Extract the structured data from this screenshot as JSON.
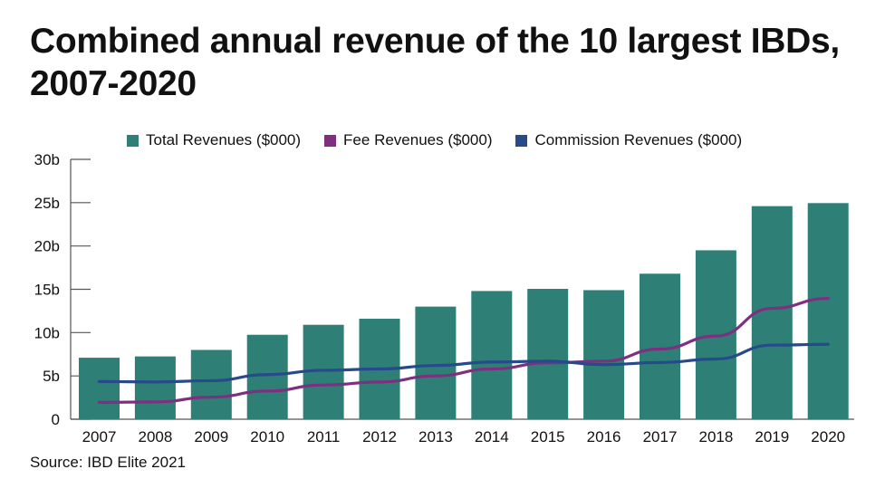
{
  "chart_data": {
    "type": "bar+line",
    "title": "Combined annual revenue of the 10 largest IBDs, 2007-2020",
    "source": "Source: IBD Elite 2021",
    "categories": [
      "2007",
      "2008",
      "2009",
      "2010",
      "2011",
      "2012",
      "2013",
      "2014",
      "2015",
      "2016",
      "2017",
      "2018",
      "2019",
      "2020"
    ],
    "yticks": [
      "0",
      "5b",
      "10b",
      "15b",
      "20b",
      "25b",
      "30b"
    ],
    "ylim": [
      0,
      30
    ],
    "yunit": "billions",
    "grid": false,
    "legend_position": "top",
    "series": [
      {
        "name": "Total Revenues ($000)",
        "kind": "bar",
        "color": "#2e7f76",
        "values": [
          7.1,
          7.25,
          8.0,
          9.75,
          10.9,
          11.6,
          13.0,
          14.8,
          15.05,
          14.9,
          16.8,
          19.5,
          24.6,
          24.95
        ]
      },
      {
        "name": "Fee Revenues ($000)",
        "kind": "line",
        "color": "#7f2f7f",
        "values": [
          1.95,
          2.0,
          2.55,
          3.25,
          3.95,
          4.3,
          5.0,
          5.8,
          6.5,
          6.7,
          8.1,
          9.6,
          12.8,
          13.95
        ]
      },
      {
        "name": "Commission Revenues ($000)",
        "kind": "line",
        "color": "#264a8a",
        "values": [
          4.35,
          4.3,
          4.45,
          5.15,
          5.65,
          5.8,
          6.2,
          6.6,
          6.7,
          6.3,
          6.55,
          6.95,
          8.55,
          8.65
        ]
      }
    ]
  }
}
